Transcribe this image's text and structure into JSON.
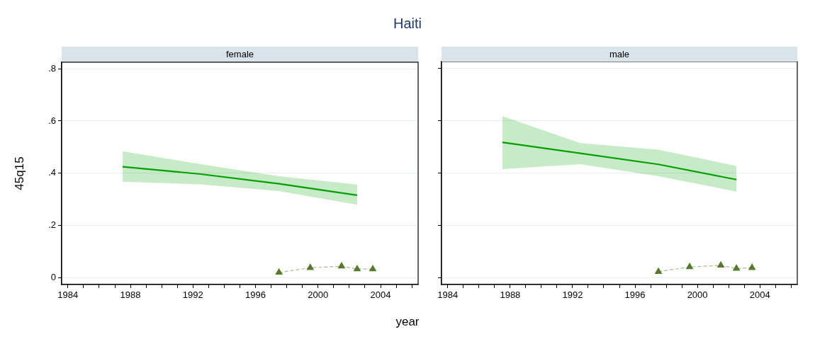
{
  "chart_data": [
    {
      "type": "line",
      "title": "Haiti",
      "subtitle": "female",
      "xlabel": "year",
      "ylabel": "45q15",
      "xlim": [
        1983.6,
        2006.4
      ],
      "xticks": [
        1984,
        {
          "value": 1985,
          "label": null
        },
        {
          "value": 1986,
          "label": null
        },
        {
          "value": 1987,
          "label": null
        },
        1988,
        {
          "value": 1989,
          "label": null
        },
        {
          "value": 1990,
          "label": null
        },
        {
          "value": 1991,
          "label": null
        },
        1992,
        {
          "value": 1993,
          "label": null
        },
        {
          "value": 1994,
          "label": null
        },
        {
          "value": 1995,
          "label": null
        },
        1996,
        {
          "value": 1997,
          "label": null
        },
        {
          "value": 1998,
          "label": null
        },
        {
          "value": 1999,
          "label": null
        },
        2000,
        {
          "value": 2001,
          "label": null
        },
        {
          "value": 2002,
          "label": null
        },
        {
          "value": 2003,
          "label": null
        },
        2004,
        {
          "value": 2005,
          "label": null
        },
        {
          "value": 2006,
          "label": null
        }
      ],
      "ylim": [
        -0.025,
        0.825
      ],
      "yticks": [
        0,
        {
          "value": 0.2,
          "label": ".2"
        },
        {
          "value": 0.4,
          "label": ".4"
        },
        {
          "value": 0.6,
          "label": ".6"
        },
        {
          "value": 0.8,
          "label": ".8"
        }
      ],
      "grid": "y",
      "legend": false,
      "series": [
        {
          "type": "line",
          "color": "#00a000",
          "x": [
            1987.5,
            1992.5,
            1997.5,
            2002.5
          ],
          "values": [
            0.425,
            0.397,
            0.36,
            0.316
          ],
          "lower": [
            0.368,
            0.358,
            0.332,
            0.28
          ],
          "upper": [
            0.484,
            0.435,
            0.389,
            0.357
          ],
          "marker": "none",
          "line_style": "solid"
        },
        {
          "type": "line",
          "color": "#557a2b",
          "x": [
            1997.5,
            1999.5,
            2001.5,
            2002.5,
            2003.5
          ],
          "values": [
            0.021,
            0.039,
            0.045,
            0.034,
            0.034
          ],
          "marker": "triangle",
          "line_style": "dashed"
        }
      ]
    },
    {
      "type": "line",
      "subtitle": "male",
      "tick_labels": "x",
      "xlim": [
        1983.6,
        2006.4
      ],
      "xticks": [
        1984,
        {
          "value": 1985,
          "label": null
        },
        {
          "value": 1986,
          "label": null
        },
        {
          "value": 1987,
          "label": null
        },
        1988,
        {
          "value": 1989,
          "label": null
        },
        {
          "value": 1990,
          "label": null
        },
        {
          "value": 1991,
          "label": null
        },
        1992,
        {
          "value": 1993,
          "label": null
        },
        {
          "value": 1994,
          "label": null
        },
        {
          "value": 1995,
          "label": null
        },
        1996,
        {
          "value": 1997,
          "label": null
        },
        {
          "value": 1998,
          "label": null
        },
        {
          "value": 1999,
          "label": null
        },
        2000,
        {
          "value": 2001,
          "label": null
        },
        {
          "value": 2002,
          "label": null
        },
        {
          "value": 2003,
          "label": null
        },
        2004,
        {
          "value": 2005,
          "label": null
        },
        {
          "value": 2006,
          "label": null
        }
      ],
      "ylim": [
        -0.025,
        0.825
      ],
      "yticks": [
        0,
        0.2,
        0.4,
        0.6,
        0.8
      ],
      "grid": "y",
      "legend": false,
      "series": [
        {
          "type": "line",
          "color": "#00a000",
          "x": [
            1987.5,
            1992.5,
            1997.5,
            2002.5
          ],
          "values": [
            0.517,
            0.475,
            0.433,
            0.375
          ],
          "lower": [
            0.415,
            0.434,
            0.388,
            0.329
          ],
          "upper": [
            0.617,
            0.514,
            0.489,
            0.427
          ],
          "marker": "none",
          "line_style": "solid"
        },
        {
          "type": "line",
          "color": "#557a2b",
          "x": [
            1997.5,
            1999.5,
            2001.5,
            2002.5,
            2003.5
          ],
          "values": [
            0.024,
            0.042,
            0.048,
            0.036,
            0.039
          ],
          "marker": "triangle",
          "line_style": "dashed"
        }
      ]
    }
  ]
}
